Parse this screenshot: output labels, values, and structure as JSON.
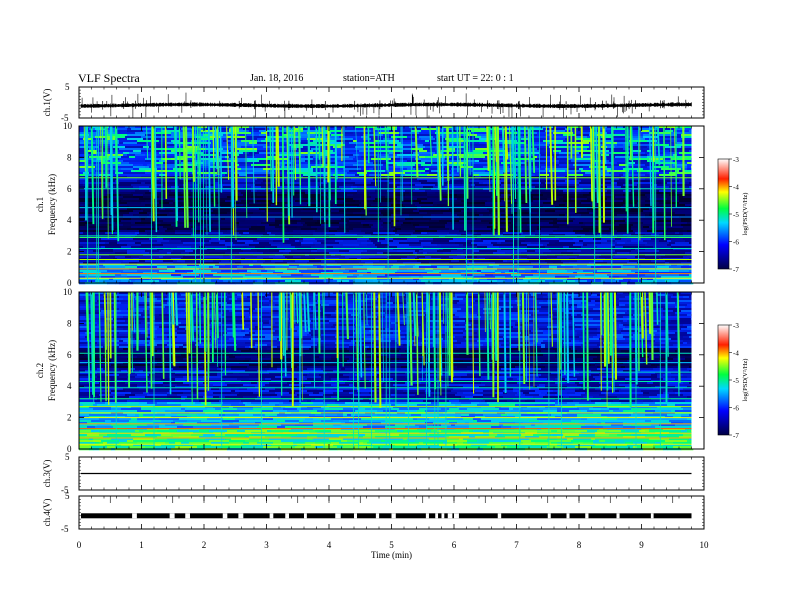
{
  "header": {
    "title": "VLF Spectra",
    "date": "Jan. 18, 2016",
    "station": "station=ATH",
    "start": "start  UT  =   22: 0  : 1"
  },
  "chart_data": [
    {
      "panel": "ch1-waveform",
      "type": "line",
      "ylabel": "ch.1(V)",
      "ylim": [
        -5,
        5
      ],
      "yticks": [
        "5",
        "-5"
      ],
      "baseline": -1.0,
      "xlim": [
        0,
        10
      ]
    },
    {
      "panel": "ch1-spectrogram",
      "type": "heatmap",
      "ylabel_top": "ch.1",
      "ylabel": "Frequency  (kHz)",
      "ylim": [
        0,
        10
      ],
      "yticks": [
        "0",
        "2",
        "4",
        "6",
        "8",
        "10"
      ],
      "colorbar_label": "log(PSD(V²/Hz)",
      "colorbar_ticks": [
        "-3",
        "-4",
        "-5",
        "-6",
        "-7"
      ],
      "clim": [
        -7,
        -3
      ],
      "xlim": [
        0,
        9.8
      ]
    },
    {
      "panel": "ch2-spectrogram",
      "type": "heatmap",
      "ylabel_top": "ch.2",
      "ylabel": "Frequency  (kHz)",
      "ylim": [
        0,
        10
      ],
      "yticks": [
        "0",
        "2",
        "4",
        "6",
        "8",
        "10"
      ],
      "colorbar_label": "log(PSD(V²/Hz)",
      "colorbar_ticks": [
        "-3",
        "-4",
        "-5",
        "-6",
        "-7"
      ],
      "clim": [
        -7,
        -3
      ],
      "xlim": [
        0,
        9.8
      ]
    },
    {
      "panel": "ch3-waveform",
      "type": "line",
      "ylabel": "ch.3(V)",
      "ylim": [
        -5,
        5
      ],
      "yticks": [
        "5",
        "-5"
      ],
      "baseline": 0
    },
    {
      "panel": "ch4-waveform",
      "type": "line",
      "ylabel": "ch.4(V)",
      "ylim": [
        -5,
        5
      ],
      "yticks": [
        "5",
        "-5"
      ],
      "baseline": -1.0
    }
  ],
  "xaxis": {
    "label": "Time  (min)",
    "ticks": [
      "0",
      "1",
      "2",
      "3",
      "4",
      "5",
      "6",
      "7",
      "8",
      "9",
      "10"
    ],
    "xlim": [
      0,
      10
    ]
  },
  "colors": {
    "spectrum_low": "#000033",
    "spectrum_mid": "#0044ff",
    "spectrum_high": "#00ff66",
    "spectrum_peak": "#ffff00",
    "axis": "#000000"
  }
}
